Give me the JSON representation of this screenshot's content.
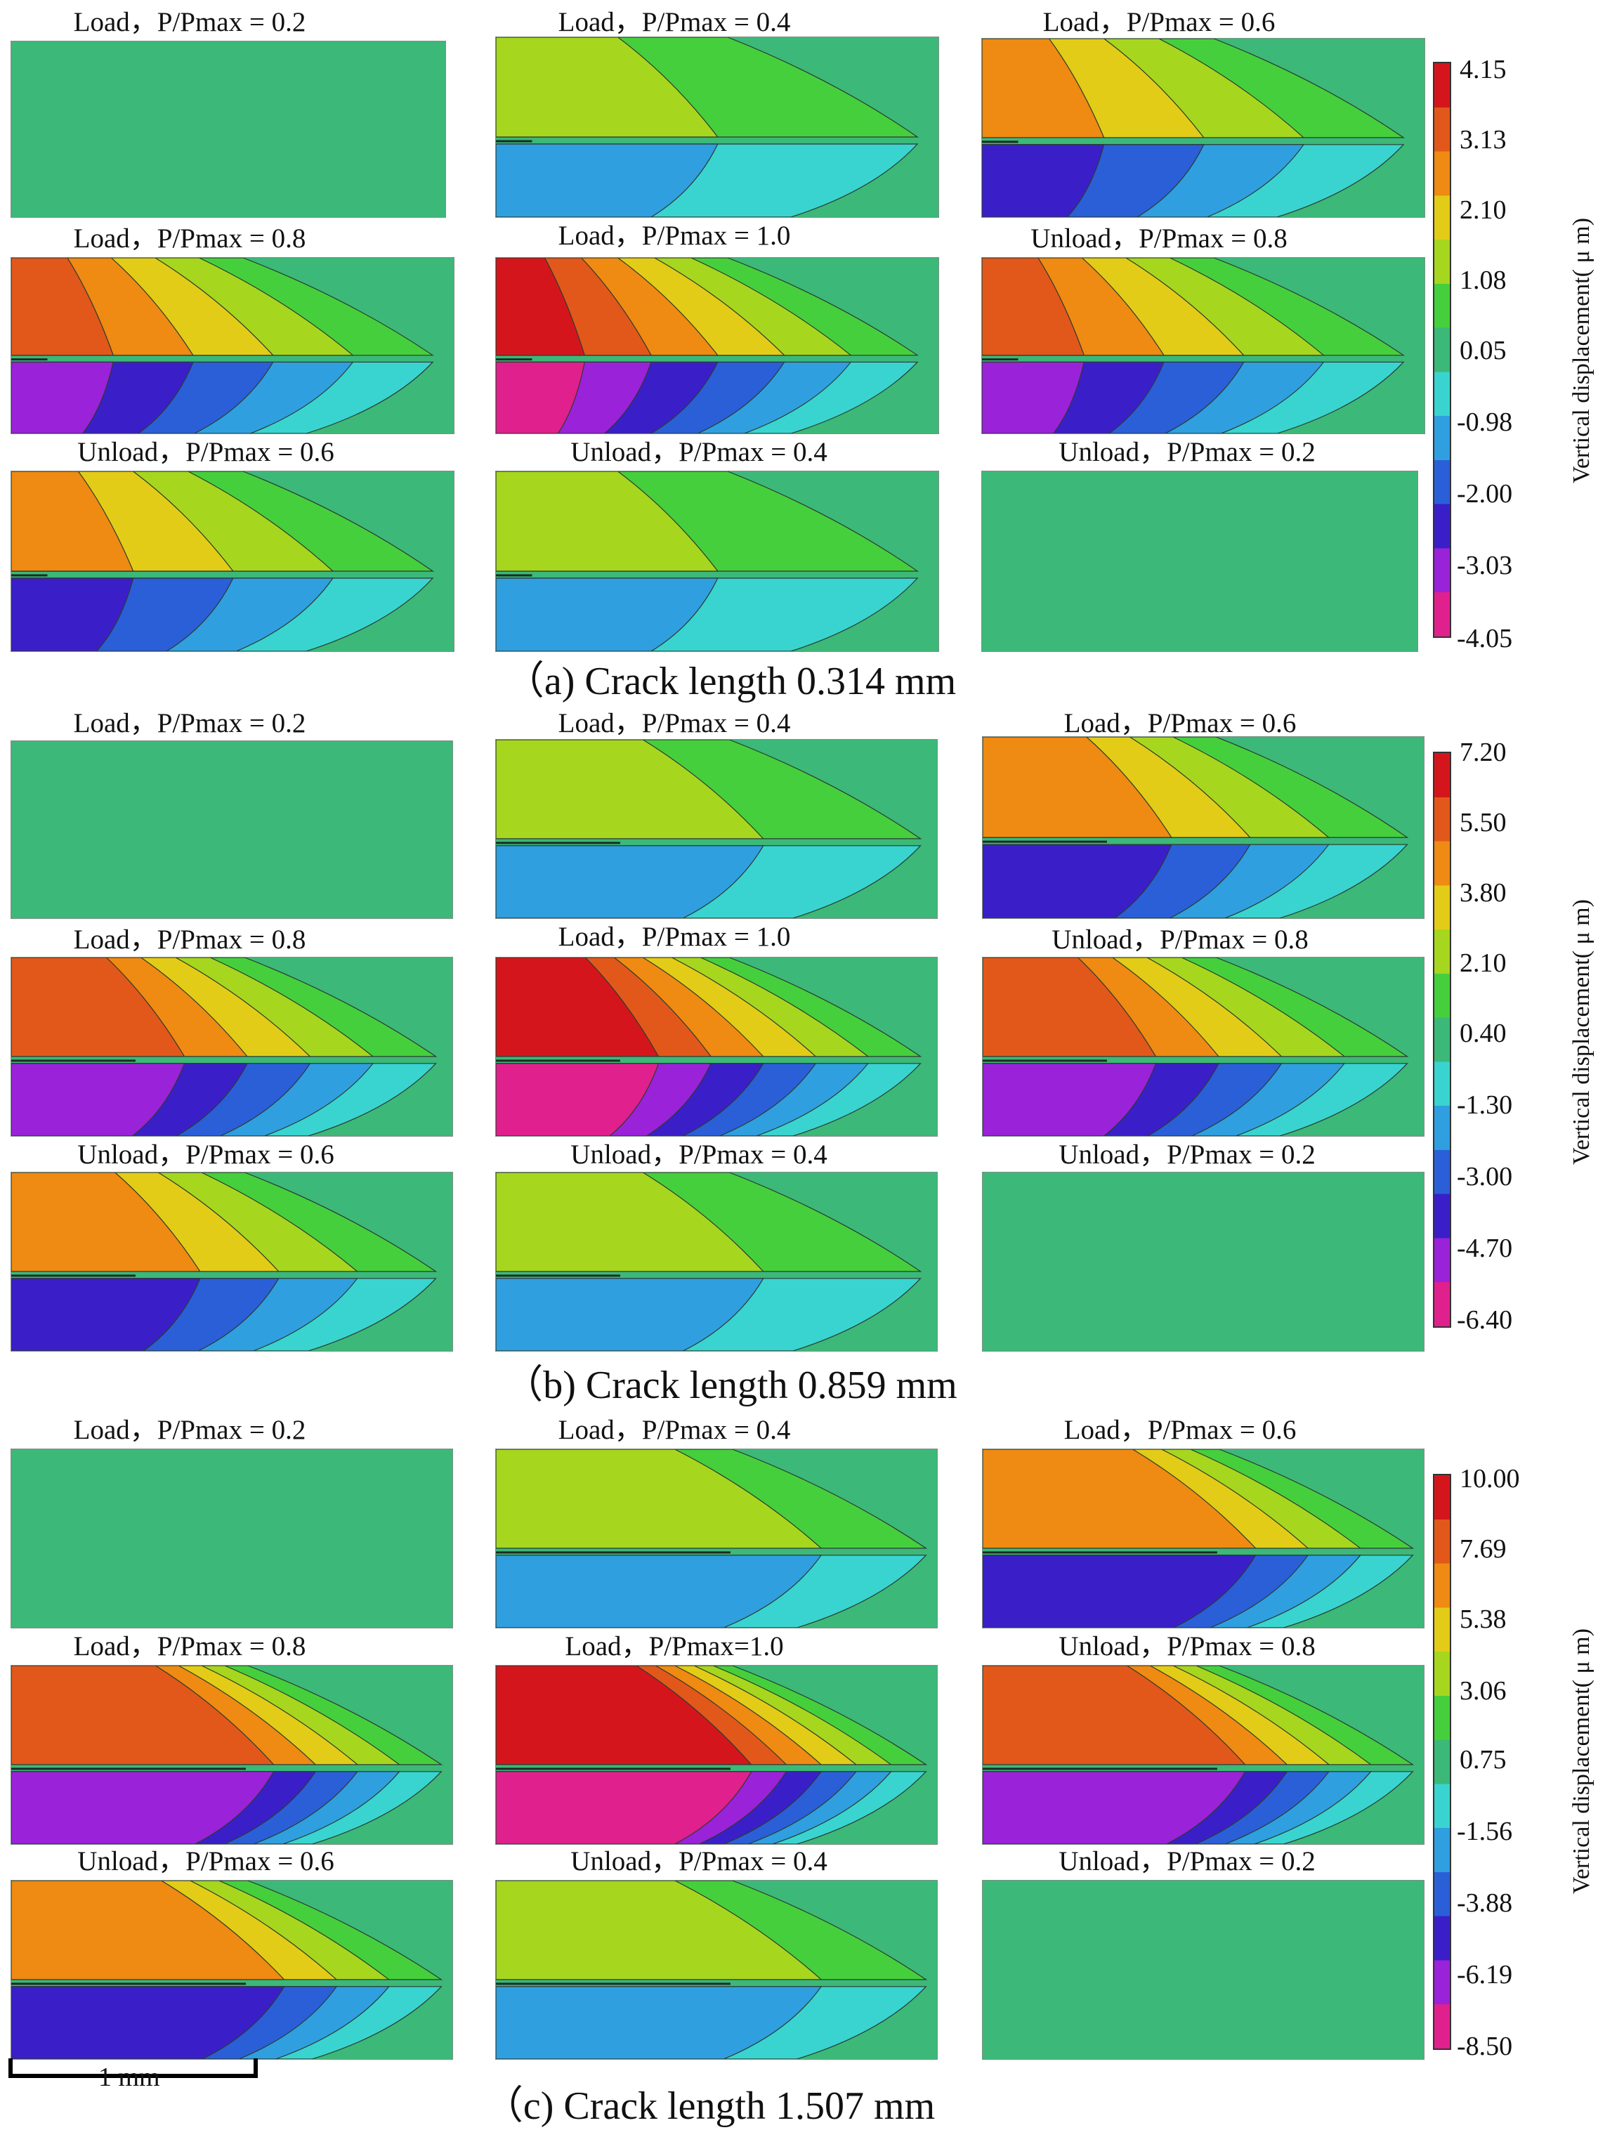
{
  "sections": [
    {
      "id": "a",
      "caption": "（a) Crack length 0.314 mm",
      "panels": [
        {
          "label": "Load，P/Pmax = 0.2",
          "intensity": 0.0
        },
        {
          "label": "Load，P/Pmax = 0.4",
          "intensity": 0.3
        },
        {
          "label": "Load，P/Pmax = 0.6",
          "intensity": 0.6
        },
        {
          "label": "Load，P/Pmax = 0.8",
          "intensity": 0.85
        },
        {
          "label": "Load，P/Pmax = 1.0",
          "intensity": 1.0
        },
        {
          "label": "Unload，P/Pmax = 0.8",
          "intensity": 0.85
        },
        {
          "label": "Unload，P/Pmax = 0.6",
          "intensity": 0.6
        },
        {
          "label": "Unload，P/Pmax = 0.4",
          "intensity": 0.3
        },
        {
          "label": "Unload，P/Pmax = 0.2",
          "intensity": 0.0
        }
      ],
      "colorbar": {
        "ticks": [
          "4.15",
          "3.13",
          "2.10",
          "1.08",
          "0.05",
          "-0.98",
          "-2.00",
          "-3.03",
          "-4.05"
        ],
        "title": "Vertical displacement( μ m)"
      }
    },
    {
      "id": "b",
      "caption": "（b) Crack length 0.859 mm",
      "panels": [
        {
          "label": "Load，P/Pmax = 0.2",
          "intensity": 0.0
        },
        {
          "label": "Load，P/Pmax = 0.4",
          "intensity": 0.3
        },
        {
          "label": "Load，P/Pmax = 0.6",
          "intensity": 0.6
        },
        {
          "label": "Load，P/Pmax = 0.8",
          "intensity": 0.85
        },
        {
          "label": "Load，P/Pmax = 1.0",
          "intensity": 1.0
        },
        {
          "label": "Unload，P/Pmax = 0.8",
          "intensity": 0.85
        },
        {
          "label": "Unload，P/Pmax = 0.6",
          "intensity": 0.6
        },
        {
          "label": "Unload，P/Pmax = 0.4",
          "intensity": 0.3
        },
        {
          "label": "Unload，P/Pmax = 0.2",
          "intensity": 0.0
        }
      ],
      "colorbar": {
        "ticks": [
          "7.20",
          "5.50",
          "3.80",
          "2.10",
          "0.40",
          "-1.30",
          "-3.00",
          "-4.70",
          "-6.40"
        ],
        "title": "Vertical displacement( μ m)"
      }
    },
    {
      "id": "c",
      "caption": "（c) Crack length 1.507 mm",
      "panels": [
        {
          "label": "Load，P/Pmax = 0.2",
          "intensity": 0.0
        },
        {
          "label": "Load，P/Pmax = 0.4",
          "intensity": 0.3
        },
        {
          "label": "Load，P/Pmax = 0.6",
          "intensity": 0.6
        },
        {
          "label": "Load，P/Pmax = 0.8",
          "intensity": 0.85
        },
        {
          "label": "Load，P/Pmax=1.0",
          "intensity": 1.0
        },
        {
          "label": "Unload，P/Pmax = 0.8",
          "intensity": 0.85
        },
        {
          "label": "Unload，P/Pmax = 0.6",
          "intensity": 0.6
        },
        {
          "label": "Unload，P/Pmax = 0.4",
          "intensity": 0.3
        },
        {
          "label": "Unload，P/Pmax = 0.2",
          "intensity": 0.0
        }
      ],
      "colorbar": {
        "ticks": [
          "10.00",
          "7.69",
          "5.38",
          "3.06",
          "0.75",
          "-1.56",
          "-3.88",
          "-6.19",
          "-8.50"
        ],
        "title": "Vertical displacement( μ m)"
      }
    }
  ],
  "scale_bar": {
    "label": "1 mm"
  },
  "colors": {
    "base": "#3cb878",
    "colormap": [
      "#e0208c",
      "#9a22d8",
      "#3a1fc8",
      "#2a5fd8",
      "#2f9fe0",
      "#39d4cf",
      "#3cb878",
      "#46cf3c",
      "#a7d61f",
      "#e3cc17",
      "#ef8a12",
      "#e2581a",
      "#d4161c"
    ]
  }
}
